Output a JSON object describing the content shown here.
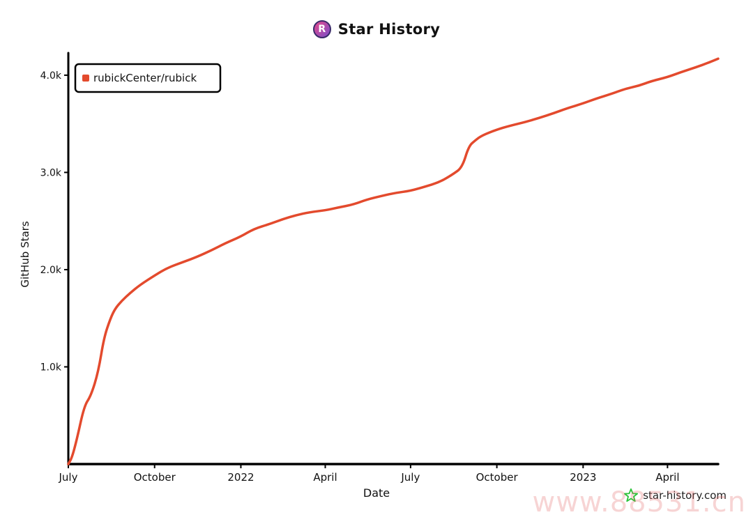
{
  "header": {
    "title": "Star History",
    "logo_letter": "R"
  },
  "watermark": {
    "text": "star-history.com",
    "site": "www.88531.cn"
  },
  "colors": {
    "line": "#e34a2d",
    "axis": "#000000",
    "logo_start": "#e64b8b",
    "logo_end": "#7a4cc9",
    "star_icon": "#2cc33a"
  },
  "chart_data": {
    "type": "line",
    "title": "Star History",
    "xlabel": "Date",
    "ylabel": "GitHub Stars",
    "ylim": [
      0,
      4200
    ],
    "y_ticks": [
      1000,
      2000,
      3000,
      4000
    ],
    "y_tick_labels": [
      "1.0k",
      "2.0k",
      "3.0k",
      "4.0k"
    ],
    "x_range": [
      "2021-07-01",
      "2023-05-25"
    ],
    "x_ticks": [
      "2021-07-01",
      "2021-10-01",
      "2022-01-01",
      "2022-04-01",
      "2022-07-01",
      "2022-10-01",
      "2023-01-01",
      "2023-04-01"
    ],
    "x_tick_labels": [
      "July",
      "October",
      "2022",
      "April",
      "July",
      "October",
      "2023",
      "April"
    ],
    "legend": "top-left",
    "grid": false,
    "series": [
      {
        "name": "rubickCenter/rubick",
        "x": [
          "2021-07-01",
          "2021-07-05",
          "2021-07-10",
          "2021-07-18",
          "2021-07-25",
          "2021-08-02",
          "2021-08-08",
          "2021-08-15",
          "2021-08-20",
          "2021-08-27",
          "2021-09-05",
          "2021-09-15",
          "2021-10-01",
          "2021-10-15",
          "2021-11-01",
          "2021-11-15",
          "2021-12-01",
          "2021-12-15",
          "2022-01-01",
          "2022-01-15",
          "2022-02-01",
          "2022-02-15",
          "2022-03-01",
          "2022-03-15",
          "2022-04-01",
          "2022-04-15",
          "2022-05-01",
          "2022-05-15",
          "2022-06-01",
          "2022-06-15",
          "2022-07-01",
          "2022-07-15",
          "2022-08-01",
          "2022-08-15",
          "2022-08-25",
          "2022-09-01",
          "2022-09-08",
          "2022-09-15",
          "2022-10-01",
          "2022-10-15",
          "2022-11-01",
          "2022-11-15",
          "2022-12-01",
          "2022-12-15",
          "2023-01-01",
          "2023-01-15",
          "2023-02-01",
          "2023-02-15",
          "2023-03-01",
          "2023-03-15",
          "2023-04-01",
          "2023-04-15",
          "2023-05-01",
          "2023-05-15",
          "2023-05-25"
        ],
        "values": [
          0,
          70,
          250,
          600,
          700,
          950,
          1300,
          1500,
          1600,
          1680,
          1760,
          1840,
          1940,
          2020,
          2080,
          2130,
          2200,
          2270,
          2340,
          2420,
          2470,
          2520,
          2560,
          2590,
          2610,
          2640,
          2670,
          2720,
          2760,
          2790,
          2810,
          2850,
          2900,
          2980,
          3050,
          3270,
          3330,
          3380,
          3440,
          3480,
          3520,
          3560,
          3610,
          3660,
          3710,
          3760,
          3810,
          3860,
          3890,
          3940,
          3980,
          4030,
          4080,
          4130,
          4170
        ]
      }
    ]
  }
}
